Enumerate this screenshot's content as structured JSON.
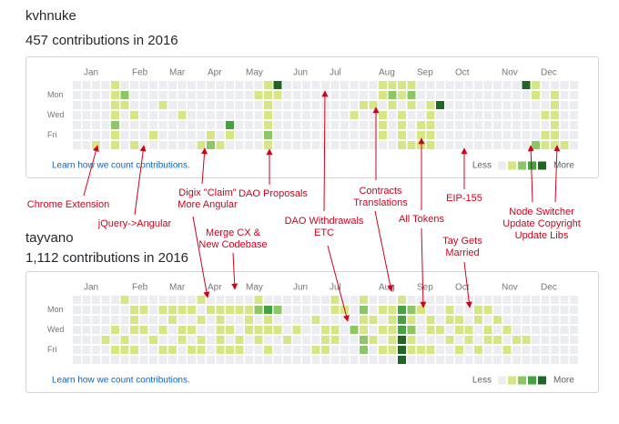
{
  "colors": [
    "#ebedf0",
    "#d6e685",
    "#8cc665",
    "#44a340",
    "#1e6823"
  ],
  "profiles": [
    {
      "username": "kvhnuke",
      "summary": "457 contributions in 2016",
      "months": [
        "Jan",
        "Feb",
        "Mar",
        "Apr",
        "May",
        "Jun",
        "Jul",
        "Aug",
        "Sep",
        "Oct",
        "Nov",
        "Dec"
      ],
      "days": [
        "Mon",
        "Wed",
        "Fri"
      ],
      "levels": [
        [
          0,
          0,
          0,
          0,
          1,
          0,
          0,
          0,
          0,
          0,
          0,
          0,
          0,
          0,
          0,
          0,
          0,
          0,
          0,
          0,
          1,
          4,
          0,
          0,
          0,
          0,
          0,
          0,
          0,
          0,
          0,
          0,
          1,
          1,
          1,
          1,
          0,
          0,
          0,
          0,
          0,
          0,
          0,
          0,
          0,
          0,
          0,
          4,
          1,
          0,
          0,
          0,
          0
        ],
        [
          0,
          0,
          0,
          0,
          1,
          2,
          0,
          0,
          0,
          0,
          0,
          0,
          0,
          0,
          0,
          0,
          0,
          0,
          0,
          1,
          1,
          1,
          0,
          0,
          0,
          0,
          0,
          0,
          0,
          0,
          0,
          0,
          1,
          2,
          1,
          2,
          0,
          0,
          0,
          0,
          0,
          0,
          0,
          0,
          0,
          0,
          0,
          0,
          1,
          0,
          1,
          0,
          0
        ],
        [
          0,
          0,
          0,
          0,
          1,
          1,
          0,
          0,
          0,
          1,
          0,
          0,
          0,
          0,
          0,
          0,
          0,
          0,
          0,
          0,
          1,
          0,
          0,
          0,
          0,
          0,
          0,
          0,
          0,
          0,
          1,
          1,
          0,
          1,
          0,
          1,
          0,
          1,
          4,
          0,
          0,
          0,
          0,
          0,
          0,
          0,
          0,
          0,
          0,
          0,
          1,
          0,
          0
        ],
        [
          0,
          0,
          0,
          0,
          1,
          0,
          1,
          0,
          0,
          0,
          0,
          1,
          0,
          0,
          0,
          0,
          0,
          0,
          0,
          0,
          1,
          0,
          0,
          0,
          0,
          0,
          0,
          0,
          0,
          1,
          0,
          0,
          1,
          0,
          1,
          0,
          0,
          1,
          0,
          0,
          0,
          0,
          0,
          0,
          0,
          0,
          0,
          0,
          0,
          1,
          1,
          0,
          0
        ],
        [
          0,
          0,
          0,
          0,
          2,
          0,
          0,
          0,
          0,
          0,
          0,
          0,
          0,
          0,
          0,
          0,
          3,
          0,
          0,
          0,
          1,
          0,
          0,
          0,
          0,
          0,
          0,
          0,
          0,
          0,
          0,
          0,
          1,
          0,
          1,
          0,
          1,
          1,
          0,
          0,
          0,
          0,
          0,
          0,
          0,
          0,
          0,
          0,
          0,
          0,
          1,
          0,
          0
        ],
        [
          0,
          0,
          0,
          0,
          1,
          0,
          0,
          0,
          1,
          0,
          0,
          0,
          0,
          0,
          1,
          0,
          1,
          0,
          0,
          0,
          2,
          0,
          0,
          0,
          0,
          0,
          0,
          0,
          0,
          0,
          0,
          0,
          1,
          0,
          1,
          0,
          1,
          1,
          0,
          0,
          0,
          0,
          0,
          0,
          0,
          0,
          0,
          0,
          0,
          1,
          1,
          0,
          0
        ],
        [
          0,
          0,
          1,
          0,
          1,
          0,
          1,
          0,
          0,
          0,
          0,
          0,
          0,
          1,
          2,
          1,
          0,
          0,
          0,
          0,
          1,
          0,
          0,
          0,
          0,
          0,
          0,
          0,
          0,
          0,
          0,
          0,
          0,
          0,
          1,
          1,
          1,
          1,
          0,
          0,
          0,
          0,
          0,
          0,
          0,
          0,
          0,
          0,
          2,
          1,
          1,
          1,
          0
        ]
      ],
      "learn_link": "Learn how we count contributions.",
      "legend_less": "Less",
      "legend_more": "More",
      "legend_levels": [
        0,
        1,
        2,
        3,
        4
      ]
    },
    {
      "username": "tayvano",
      "summary": "1,112 contributions in 2016",
      "months": [
        "Jan",
        "Feb",
        "Mar",
        "Apr",
        "May",
        "Jun",
        "Jul",
        "Aug",
        "Sep",
        "Oct",
        "Nov",
        "Dec"
      ],
      "days": [
        "Mon",
        "Wed",
        "Fri"
      ],
      "levels": [
        [
          0,
          0,
          0,
          0,
          0,
          1,
          0,
          0,
          0,
          0,
          0,
          0,
          0,
          1,
          0,
          0,
          0,
          0,
          0,
          1,
          0,
          0,
          0,
          0,
          0,
          0,
          0,
          1,
          0,
          0,
          1,
          0,
          0,
          0,
          1,
          0,
          0,
          0,
          0,
          0,
          0,
          0,
          0,
          0,
          0,
          0,
          0,
          0,
          0,
          0,
          0,
          0,
          0
        ],
        [
          0,
          0,
          0,
          0,
          0,
          0,
          1,
          1,
          0,
          1,
          1,
          1,
          1,
          0,
          1,
          1,
          1,
          1,
          1,
          2,
          3,
          2,
          0,
          0,
          0,
          0,
          0,
          1,
          1,
          0,
          2,
          0,
          1,
          1,
          3,
          2,
          1,
          0,
          0,
          1,
          0,
          0,
          1,
          1,
          0,
          0,
          0,
          0,
          0,
          0,
          0,
          0,
          0
        ],
        [
          0,
          0,
          0,
          0,
          0,
          0,
          1,
          0,
          0,
          0,
          1,
          0,
          0,
          1,
          0,
          1,
          0,
          0,
          1,
          0,
          1,
          0,
          0,
          0,
          0,
          1,
          0,
          0,
          0,
          0,
          1,
          1,
          0,
          1,
          3,
          1,
          0,
          1,
          0,
          1,
          1,
          0,
          1,
          0,
          1,
          0,
          0,
          0,
          0,
          0,
          0,
          0,
          0
        ],
        [
          0,
          0,
          0,
          0,
          1,
          0,
          1,
          1,
          0,
          1,
          0,
          1,
          1,
          0,
          0,
          1,
          1,
          0,
          1,
          1,
          1,
          1,
          0,
          1,
          0,
          0,
          1,
          1,
          0,
          2,
          1,
          0,
          1,
          1,
          3,
          2,
          0,
          1,
          1,
          0,
          1,
          1,
          0,
          1,
          0,
          1,
          0,
          0,
          0,
          0,
          0,
          0,
          0
        ],
        [
          0,
          0,
          0,
          1,
          0,
          1,
          0,
          0,
          1,
          0,
          0,
          1,
          0,
          1,
          0,
          1,
          0,
          1,
          0,
          1,
          0,
          0,
          1,
          0,
          0,
          0,
          1,
          1,
          0,
          0,
          2,
          1,
          0,
          1,
          4,
          1,
          0,
          0,
          0,
          1,
          0,
          1,
          0,
          1,
          1,
          0,
          1,
          1,
          0,
          0,
          0,
          0,
          0
        ],
        [
          0,
          0,
          0,
          0,
          1,
          1,
          1,
          0,
          0,
          1,
          1,
          0,
          1,
          1,
          0,
          1,
          1,
          1,
          0,
          0,
          1,
          0,
          0,
          0,
          0,
          1,
          1,
          0,
          0,
          0,
          2,
          0,
          1,
          1,
          4,
          1,
          1,
          1,
          0,
          0,
          1,
          0,
          1,
          0,
          0,
          1,
          0,
          0,
          0,
          0,
          0,
          0,
          0
        ],
        [
          0,
          0,
          0,
          0,
          0,
          0,
          0,
          0,
          0,
          0,
          0,
          0,
          0,
          0,
          0,
          0,
          0,
          0,
          0,
          0,
          0,
          0,
          0,
          0,
          0,
          0,
          0,
          0,
          0,
          0,
          0,
          0,
          0,
          0,
          4,
          0,
          0,
          0,
          0,
          0,
          0,
          0,
          0,
          0,
          0,
          0,
          0,
          0,
          0,
          0,
          0,
          0,
          0
        ]
      ],
      "learn_link": "Learn how we count contributions.",
      "legend_less": "Less",
      "legend_more": "More",
      "legend_levels": [
        0,
        1,
        2,
        3,
        4
      ]
    }
  ],
  "annotations": [
    {
      "lines": [
        "Chrome Extension"
      ]
    },
    {
      "lines": [
        "jQuery->Angular"
      ]
    },
    {
      "lines": [
        "Digix \"Claim\"",
        "More Angular"
      ]
    },
    {
      "lines": [
        "DAO Proposals"
      ]
    },
    {
      "lines": [
        "Contracts",
        "Translations"
      ]
    },
    {
      "lines": [
        "EIP-155"
      ]
    },
    {
      "lines": [
        "All Tokens"
      ]
    },
    {
      "lines": [
        "DAO Withdrawals",
        "ETC"
      ]
    },
    {
      "lines": [
        "Node Switcher",
        "Update Copyright",
        "Update Libs"
      ]
    },
    {
      "lines": [
        "Merge CX &",
        "New Codebase"
      ]
    },
    {
      "lines": [
        "Tay Gets",
        "Married"
      ]
    }
  ]
}
